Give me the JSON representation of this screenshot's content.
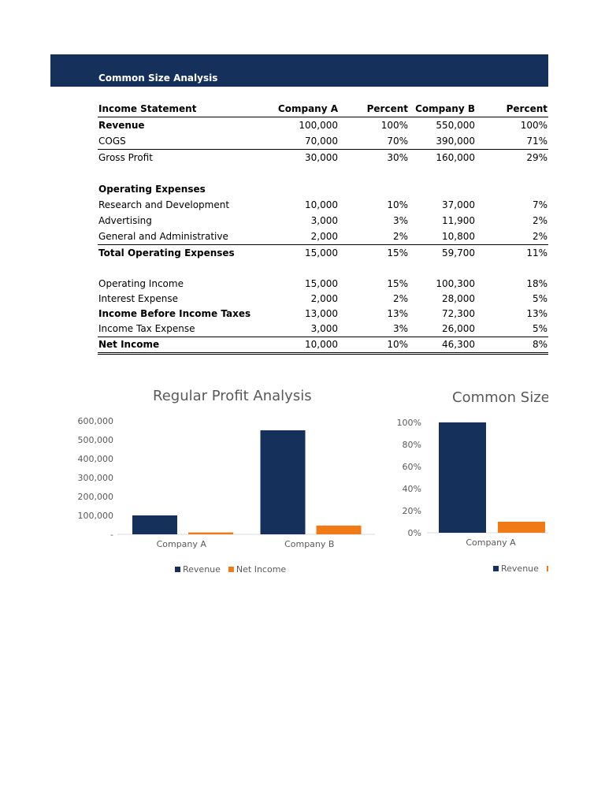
{
  "header": {
    "title": "Common Size Analysis"
  },
  "income_statement": {
    "columns": [
      "Income Statement",
      "Company A",
      "Percent",
      "Company B",
      "Percent"
    ],
    "rows": [
      {
        "label": "Revenue",
        "a": "100,000",
        "a_pct": "100%",
        "b": "550,000",
        "b_pct": "100%"
      },
      {
        "label": "COGS",
        "a": "70,000",
        "a_pct": "70%",
        "b": "390,000",
        "b_pct": "71%"
      },
      {
        "label": "Gross Profit",
        "a": "30,000",
        "a_pct": "30%",
        "b": "160,000",
        "b_pct": "29%"
      },
      {
        "label": "Operating Expenses"
      },
      {
        "label": "Research and Development",
        "a": "10,000",
        "a_pct": "10%",
        "b": "37,000",
        "b_pct": "7%"
      },
      {
        "label": "Advertising",
        "a": "3,000",
        "a_pct": "3%",
        "b": "11,900",
        "b_pct": "2%"
      },
      {
        "label": "General and Administrative",
        "a": "2,000",
        "a_pct": "2%",
        "b": "10,800",
        "b_pct": "2%"
      },
      {
        "label": "Total Operating Expenses",
        "a": "15,000",
        "a_pct": "15%",
        "b": "59,700",
        "b_pct": "11%"
      },
      {
        "label": "Operating Income",
        "a": "15,000",
        "a_pct": "15%",
        "b": "100,300",
        "b_pct": "18%"
      },
      {
        "label": "Interest Expense",
        "a": "2,000",
        "a_pct": "2%",
        "b": "28,000",
        "b_pct": "5%"
      },
      {
        "label": "Income Before Income Taxes",
        "a": "13,000",
        "a_pct": "13%",
        "b": "72,300",
        "b_pct": "13%"
      },
      {
        "label": "Income Tax Expense",
        "a": "3,000",
        "a_pct": "3%",
        "b": "26,000",
        "b_pct": "5%"
      },
      {
        "label": "Net Income",
        "a": "10,000",
        "a_pct": "10%",
        "b": "46,300",
        "b_pct": "8%"
      }
    ]
  },
  "colors": {
    "banner": "#15305a",
    "revenue": "#15305a",
    "net_income": "#f07b16",
    "axis_text": "#595959"
  },
  "chart_data": [
    {
      "type": "bar",
      "title": "Regular Profit Analysis",
      "categories": [
        "Company A",
        "Company B"
      ],
      "series": [
        {
          "name": "Revenue",
          "values": [
            100000,
            550000
          ]
        },
        {
          "name": "Net Income",
          "values": [
            10000,
            46300
          ]
        }
      ],
      "ylim": [
        0,
        600000
      ],
      "yticks": [
        "-",
        "100,000",
        "200,000",
        "300,000",
        "400,000",
        "500,000",
        "600,000"
      ],
      "grid": false,
      "legend": "bottom"
    },
    {
      "type": "bar",
      "title": "Common Size I",
      "categories": [
        "Company A"
      ],
      "series": [
        {
          "name": "Revenue",
          "values": [
            100
          ]
        },
        {
          "name": "",
          "values": [
            10
          ]
        }
      ],
      "ylim": [
        0,
        100
      ],
      "yticks": [
        "0%",
        "20%",
        "40%",
        "60%",
        "80%",
        "100%"
      ],
      "grid": false,
      "legend": "bottom"
    }
  ]
}
